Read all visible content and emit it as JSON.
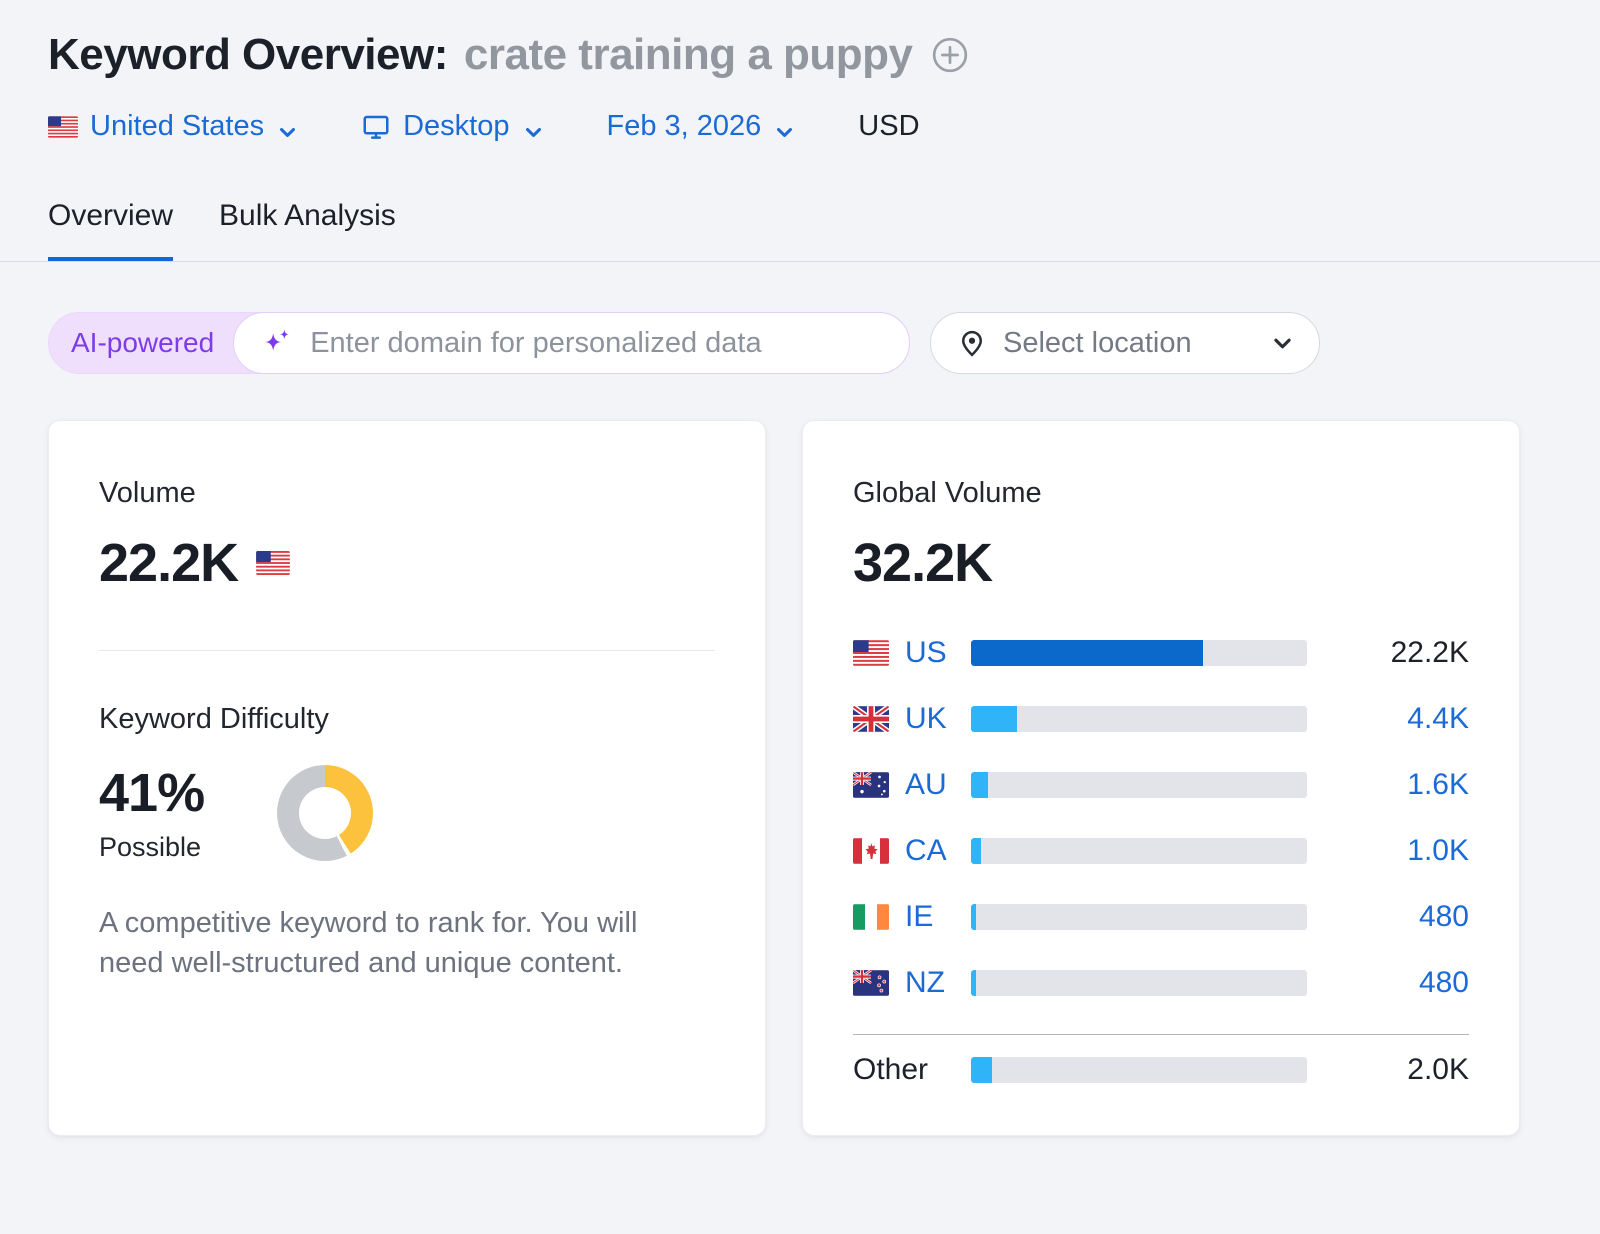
{
  "colors": {
    "link_blue": "#1b6ad6",
    "bar_dark": "#0a69cb",
    "bar_light": "#2fb4f7",
    "bar_track": "#e3e4ea",
    "kd_arc": "#fcc23d",
    "kd_track": "#c6c9ce",
    "accent_purple": "#7c3aed",
    "tab_underline": "#0b69d6"
  },
  "header": {
    "title": "Keyword Overview:",
    "keyword": "crate training a puppy",
    "country": "United States",
    "device": "Desktop",
    "date": "Feb 3, 2026",
    "currency": "USD"
  },
  "tabs": {
    "overview": "Overview",
    "bulk": "Bulk Analysis"
  },
  "ai_bar": {
    "badge": "AI-powered",
    "placeholder": "Enter domain for personalized data",
    "location": "Select location"
  },
  "volume_card": {
    "title": "Volume",
    "value": "22.2K",
    "flag": "us"
  },
  "difficulty_card": {
    "title": "Keyword Difficulty",
    "percent": "41%",
    "percent_value": 41,
    "level": "Possible",
    "description": "A competitive keyword to rank for. You will need well-structured and unique content."
  },
  "global_card": {
    "title": "Global Volume",
    "value": "32.2K",
    "total": 32200,
    "rows": [
      {
        "code": "US",
        "flag": "us",
        "value": "22.2K",
        "volume": 22200,
        "emphasis": true,
        "value_dark": true
      },
      {
        "code": "UK",
        "flag": "uk",
        "value": "4.4K",
        "volume": 4400
      },
      {
        "code": "AU",
        "flag": "au",
        "value": "1.6K",
        "volume": 1600
      },
      {
        "code": "CA",
        "flag": "ca",
        "value": "1.0K",
        "volume": 1000
      },
      {
        "code": "IE",
        "flag": "ie",
        "value": "480",
        "volume": 480
      },
      {
        "code": "NZ",
        "flag": "nz",
        "value": "480",
        "volume": 480
      },
      {
        "code": "Other",
        "flag": null,
        "value": "2.0K",
        "volume": 2000,
        "value_dark": true,
        "separated": true
      }
    ]
  }
}
